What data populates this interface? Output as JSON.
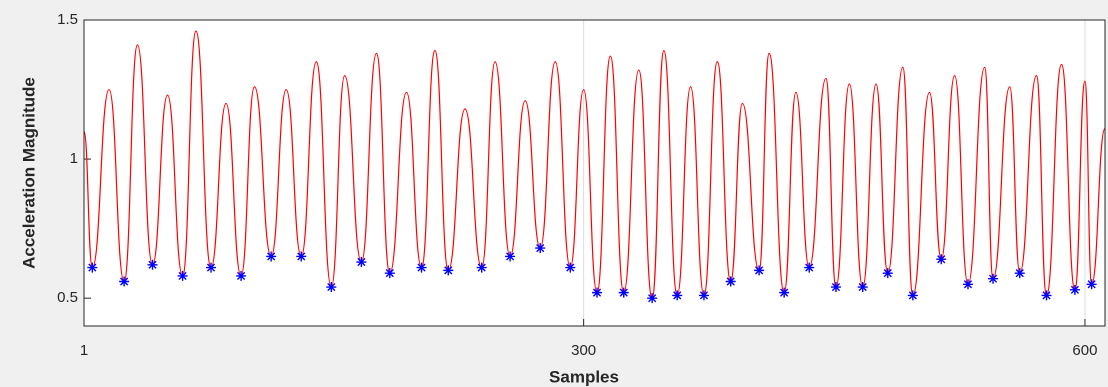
{
  "chart_data": {
    "type": "line",
    "xlabel": "Samples",
    "ylabel": "Acceleration Magnitude",
    "xlim": [
      1,
      612
    ],
    "ylim": [
      0.4,
      1.5
    ],
    "xticks": [
      1,
      300,
      600
    ],
    "yticks": [
      0.5,
      1,
      1.5
    ],
    "grid": "x",
    "series": [
      {
        "color": "#ff0000",
        "marker": "none",
        "x": [
          1,
          6,
          16,
          25,
          33,
          42,
          51,
          60,
          68,
          77,
          86,
          95,
          103,
          113,
          122,
          131,
          140,
          149,
          157,
          167,
          176,
          184,
          194,
          203,
          211,
          219,
          229,
          239,
          247,
          256,
          265,
          274,
          283,
          292,
          300,
          308,
          316,
          324,
          333,
          341,
          348,
          356,
          364,
          372,
          380,
          388,
          395,
          405,
          411,
          420,
          427,
          435,
          445,
          451,
          459,
          467,
          475,
          482,
          491,
          497,
          507,
          514,
          522,
          530,
          540,
          545,
          555,
          561,
          571,
          577,
          586,
          594,
          600,
          604,
          612
        ],
        "values": [
          1.1,
          0.61,
          1.25,
          0.56,
          1.41,
          0.62,
          1.23,
          0.58,
          1.46,
          0.61,
          1.2,
          0.58,
          1.26,
          0.65,
          1.25,
          0.65,
          1.35,
          0.54,
          1.3,
          0.63,
          1.38,
          0.59,
          1.24,
          0.61,
          1.39,
          0.6,
          1.18,
          0.61,
          1.35,
          0.65,
          1.21,
          0.68,
          1.35,
          0.61,
          1.25,
          0.52,
          1.37,
          0.52,
          1.32,
          0.5,
          1.39,
          0.51,
          1.26,
          0.51,
          1.35,
          0.56,
          1.2,
          0.6,
          1.38,
          0.52,
          1.24,
          0.61,
          1.29,
          0.54,
          1.27,
          0.54,
          1.27,
          0.59,
          1.33,
          0.51,
          1.24,
          0.64,
          1.3,
          0.55,
          1.33,
          0.57,
          1.26,
          0.59,
          1.3,
          0.51,
          1.34,
          0.53,
          1.28,
          0.55,
          1.11
        ]
      },
      {
        "color": "#0000ff",
        "marker": "asterisk",
        "x": [
          6,
          25,
          42,
          60,
          77,
          95,
          113,
          131,
          149,
          167,
          184,
          203,
          219,
          239,
          256,
          274,
          292,
          308,
          324,
          341,
          356,
          372,
          388,
          405,
          420,
          435,
          451,
          467,
          482,
          497,
          514,
          530,
          545,
          561,
          577,
          594,
          604
        ],
        "values": [
          0.61,
          0.56,
          0.62,
          0.58,
          0.61,
          0.58,
          0.65,
          0.65,
          0.54,
          0.63,
          0.59,
          0.61,
          0.6,
          0.61,
          0.65,
          0.68,
          0.61,
          0.52,
          0.52,
          0.5,
          0.51,
          0.51,
          0.56,
          0.6,
          0.52,
          0.61,
          0.54,
          0.54,
          0.59,
          0.51,
          0.64,
          0.55,
          0.57,
          0.59,
          0.51,
          0.53,
          0.55
        ]
      }
    ]
  }
}
